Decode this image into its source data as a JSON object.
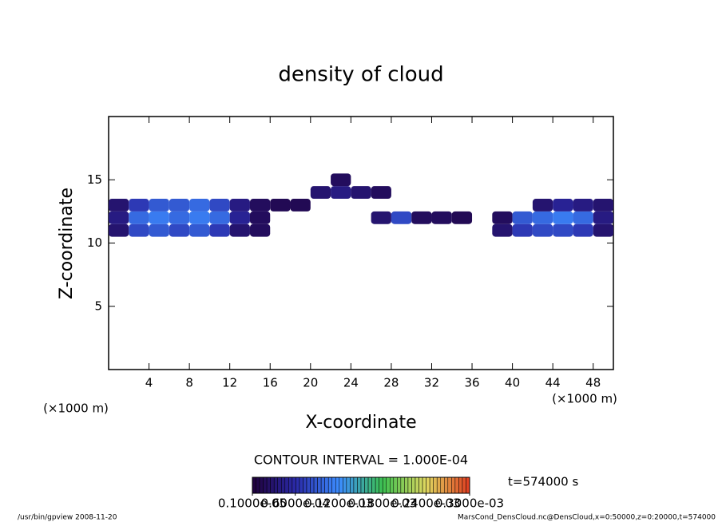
{
  "chart_data": {
    "type": "heatmap",
    "title": "density of cloud",
    "x_label": "X-coordinate",
    "y_label": "Z-coordinate",
    "x_unit": "(×1000 m)",
    "y_unit": "(×1000 m)",
    "xlim": [
      0,
      50
    ],
    "ylim": [
      0,
      20
    ],
    "xticks": [
      4,
      8,
      12,
      16,
      20,
      24,
      28,
      32,
      36,
      40,
      44,
      48
    ],
    "yticks": [
      5,
      10,
      15
    ],
    "x": [
      1,
      3,
      5,
      7,
      9,
      11,
      13,
      15,
      1,
      3,
      5,
      7,
      9,
      11,
      13,
      15,
      1,
      3,
      5,
      7,
      9,
      11,
      13,
      15,
      17,
      19,
      21,
      23,
      25,
      27,
      23,
      27,
      29,
      31,
      33,
      35,
      39,
      41,
      43,
      45,
      47,
      49,
      39,
      41,
      43,
      45,
      47,
      49,
      43,
      45,
      47,
      49
    ],
    "z": [
      11,
      11,
      11,
      11,
      11,
      11,
      11,
      11,
      12,
      12,
      12,
      12,
      12,
      12,
      12,
      12,
      13,
      13,
      13,
      13,
      13,
      13,
      13,
      13,
      13,
      13,
      14,
      14,
      14,
      14,
      15,
      12,
      12,
      12,
      12,
      12,
      11,
      11,
      11,
      11,
      11,
      11,
      12,
      12,
      12,
      12,
      12,
      12,
      13,
      13,
      13,
      13
    ],
    "values": [
      3e-05,
      8e-05,
      9e-05,
      8e-05,
      9e-05,
      7e-05,
      3e-05,
      2e-05,
      4e-05,
      0.0001,
      0.00011,
      0.0001,
      0.00011,
      0.0001,
      5e-05,
      2e-05,
      3e-05,
      7e-05,
      9e-05,
      9e-05,
      0.0001,
      8e-05,
      4e-05,
      2e-05,
      1.5e-05,
      1.5e-05,
      3e-05,
      4e-05,
      3e-05,
      2e-05,
      2e-05,
      3e-05,
      8e-05,
      2e-05,
      2e-05,
      1.5e-05,
      3e-05,
      7e-05,
      8e-05,
      8e-05,
      7e-05,
      3e-05,
      2e-05,
      9e-05,
      0.0001,
      0.00011,
      0.0001,
      4e-05,
      3e-05,
      5e-05,
      4e-05,
      3e-05
    ],
    "contour_interval": "CONTOUR INTERVAL = 1.000E-04",
    "time_label": "t=574000 s",
    "colorbar": {
      "ticks": [
        {
          "value": 1e-06,
          "label": "0.1000e-05"
        },
        {
          "value": 6e-05,
          "label": "0.6000e-04"
        },
        {
          "value": 0.00012,
          "label": "0.1200e-03"
        },
        {
          "value": 0.00018,
          "label": "0.1800e-03"
        },
        {
          "value": 0.00024,
          "label": "0.2400e-03"
        },
        {
          "value": 0.0003,
          "label": "0.3000e-03"
        }
      ],
      "colors": [
        "#20003a",
        "#2a2aa8",
        "#3c8cff",
        "#3cc050",
        "#e0d860",
        "#e03c20"
      ]
    },
    "footer_left": "/usr/bin/gpview  2008-11-20",
    "footer_right": "MarsCond_DensCloud.nc@DensCloud,x=0:50000,z=0:20000,t=574000"
  }
}
